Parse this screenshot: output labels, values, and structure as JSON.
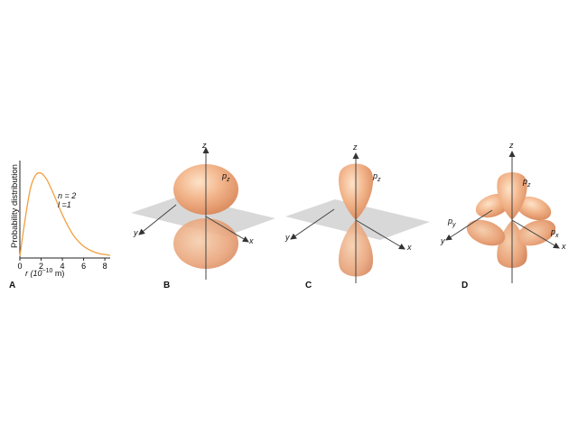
{
  "panel_a": {
    "letter": "A",
    "ylabel": "Probability distribution",
    "xlabel_main": "r (10",
    "xlabel_exp": "−10",
    "xlabel_unit": " m)",
    "xticks": [
      "0",
      "2",
      "4",
      "6",
      "8"
    ],
    "n_label": "n = 2",
    "l_label": "l =1",
    "curve_color": "#f0a040"
  },
  "panel_b": {
    "letter": "B",
    "z": "z",
    "y": "y",
    "x": "x",
    "orbital": "p",
    "orbital_sub": "z"
  },
  "panel_c": {
    "letter": "C",
    "z": "z",
    "y": "y",
    "x": "x",
    "orbital": "p",
    "orbital_sub": "z"
  },
  "panel_d": {
    "letter": "D",
    "z": "z",
    "y": "y",
    "x": "x",
    "pz": "p",
    "pz_sub": "z",
    "py": "p",
    "py_sub": "y",
    "px": "p",
    "px_sub": "x"
  },
  "chart_data": {
    "type": "line",
    "xlabel": "r (10−10 m)",
    "ylabel": "Probability distribution",
    "xlim": [
      0,
      8.5
    ],
    "xticks": [
      0,
      2,
      4,
      6,
      8
    ],
    "series": [
      {
        "x": [
          0,
          0.5,
          1.0,
          1.5,
          2.0,
          2.5,
          3.0,
          3.5,
          4.0,
          4.5,
          5.0,
          5.5,
          6.0,
          6.5,
          7.0,
          7.5,
          8.0,
          8.5
        ],
        "y": [
          0.0,
          0.45,
          0.82,
          0.98,
          1.0,
          0.93,
          0.8,
          0.65,
          0.5,
          0.37,
          0.26,
          0.18,
          0.12,
          0.08,
          0.05,
          0.03,
          0.02,
          0.01
        ]
      }
    ],
    "annotations": [
      "n = 2",
      "l =1"
    ]
  }
}
